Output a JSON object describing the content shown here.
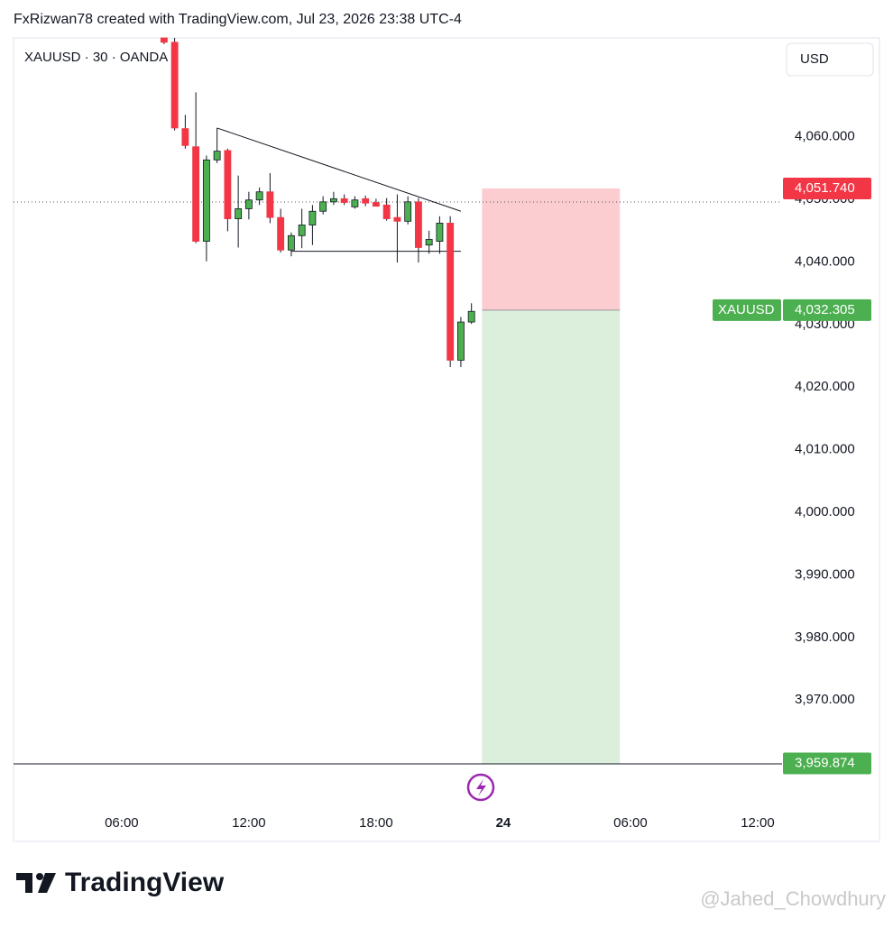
{
  "header": {
    "attribution": "FxRizwan78 created with TradingView.com, Jul 23, 2026 23:38 UTC-4"
  },
  "chart_data": {
    "type": "candlestick",
    "symbol_label": "XAUUSD · 30 · OANDA",
    "currency": "USD",
    "up_color": "#4caf50",
    "down_color": "#f23645",
    "grid": false,
    "x": [
      8.0,
      8.5,
      9.0,
      9.5,
      10.0,
      10.5,
      11.0,
      11.5,
      12.0,
      12.5,
      13.0,
      13.5,
      14.0,
      14.5,
      15.0,
      15.5,
      16.0,
      16.5,
      17.0,
      17.5,
      18.0,
      18.5,
      19.0,
      19.5,
      20.0,
      20.5,
      21.0,
      21.5,
      22.0,
      22.5
    ],
    "open": [
      4075.8,
      4075.1,
      4061.3,
      4058.4,
      4043.3,
      4056.3,
      4057.8,
      4046.9,
      4048.5,
      4049.9,
      4051.2,
      4047.1,
      4041.9,
      4044.2,
      4045.9,
      4048.1,
      4049.6,
      4050.1,
      4048.8,
      4050.1,
      4049.5,
      4049.1,
      4047.1,
      4046.5,
      4049.6,
      4042.7,
      4043.3,
      4046.2,
      4024.3,
      4030.4
    ],
    "high": [
      4075.8,
      4075.8,
      4063.5,
      4067.1,
      4057.0,
      4061.4,
      4058.1,
      4053.8,
      4051.2,
      4051.9,
      4054.2,
      4048.5,
      4044.7,
      4048.5,
      4049.1,
      4050.5,
      4051.2,
      4050.8,
      4050.5,
      4050.6,
      4050.1,
      4050.2,
      4050.8,
      4050.5,
      4050.2,
      4045.0,
      4047.3,
      4047.3,
      4031.2,
      4033.4
    ],
    "low": [
      4074.8,
      4061.0,
      4058.1,
      4043.0,
      4040.1,
      4055.8,
      4044.9,
      4042.3,
      4046.8,
      4049.1,
      4046.2,
      4041.5,
      4040.9,
      4042.2,
      4042.7,
      4047.6,
      4049.1,
      4049.1,
      4048.5,
      4048.9,
      4048.9,
      4046.6,
      4039.9,
      4046.0,
      4039.9,
      4041.3,
      4041.3,
      4023.2,
      4023.2,
      4030.1
    ],
    "close": [
      4075.1,
      4061.4,
      4058.6,
      4043.3,
      4056.3,
      4057.7,
      4046.9,
      4048.5,
      4049.9,
      4051.2,
      4047.1,
      4041.9,
      4044.2,
      4045.9,
      4048.1,
      4049.6,
      4050.1,
      4049.5,
      4049.9,
      4049.4,
      4048.9,
      4046.9,
      4046.5,
      4049.6,
      4042.3,
      4043.6,
      4046.2,
      4024.3,
      4030.4,
      4032.1
    ],
    "xlim": [
      0.9,
      37.15
    ],
    "xticks": [
      {
        "value": 6,
        "label": "06:00"
      },
      {
        "value": 12,
        "label": "12:00"
      },
      {
        "value": 18,
        "label": "18:00"
      },
      24,
      {
        "value": 30,
        "label": "06:00"
      },
      {
        "value": 36,
        "label": "12:00"
      }
    ],
    "ylim": [
      3959.8,
      4075.8
    ],
    "yticks": [
      {
        "value": 3970,
        "label": "3,970.000"
      },
      {
        "value": 3980,
        "label": "3,980.000"
      },
      {
        "value": 3990,
        "label": "3,990.000"
      },
      {
        "value": 4000,
        "label": "4,000.000"
      },
      {
        "value": 4010,
        "label": "4,010.000"
      },
      {
        "value": 4020,
        "label": "4,020.000"
      },
      {
        "value": 4030,
        "label": "4,030.000"
      },
      {
        "value": 4040,
        "label": "4,040.000"
      },
      {
        "value": 4050,
        "label": "4,050.000"
      },
      {
        "value": 4060,
        "label": "4,060.000"
      }
    ],
    "trendlines": [
      {
        "x": [
          10.5,
          22.0
        ],
        "y": [
          4061.4,
          4048.1
        ]
      },
      {
        "x": [
          14.0,
          22.0
        ],
        "y": [
          4041.7,
          4041.7
        ]
      }
    ],
    "position": {
      "x_range": [
        23.0,
        29.5
      ],
      "entry": 4032.305,
      "stop": {
        "value": 4051.74,
        "label": "4,051.740"
      },
      "target": {
        "value": 3959.874,
        "label": "3,959.874"
      }
    },
    "last_price": {
      "name": "XAUUSD",
      "value": 4032.305,
      "label": "4,032.305"
    }
  },
  "footer": {
    "logo": "TradingView",
    "watermark": "@Jahed_Chowdhury"
  }
}
